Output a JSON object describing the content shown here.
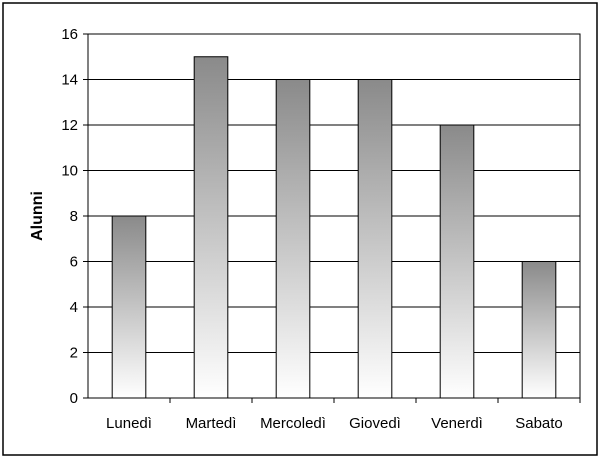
{
  "chart_data": {
    "type": "bar",
    "title": "",
    "xlabel": "",
    "ylabel": "Alunni",
    "categories": [
      "Lunedì",
      "Martedì",
      "Mercoledì",
      "Giovedì",
      "Venerdì",
      "Sabato"
    ],
    "values": [
      8,
      15,
      14,
      14,
      12,
      6
    ],
    "ylim": [
      0,
      16
    ],
    "yticks": [
      0,
      2,
      4,
      6,
      8,
      10,
      12,
      14,
      16
    ],
    "grid": true,
    "legend": "none",
    "colors": {
      "bar_top": "#8a8a8a",
      "bar_bottom": "#ffffff",
      "grid": "#000000",
      "frame": "#000000"
    }
  }
}
